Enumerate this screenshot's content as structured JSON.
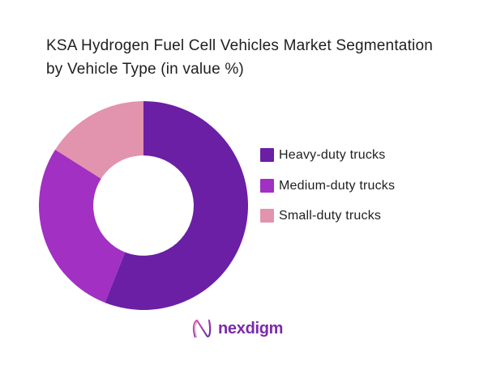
{
  "page": {
    "background": "#ffffff"
  },
  "header": {
    "title": "KSA Hydrogen Fuel Cell Vehicles Market Segmentation\nby Vehicle Type (in value %)"
  },
  "chart_data": {
    "type": "pie",
    "variant": "donut",
    "title": "KSA Hydrogen Fuel Cell Vehicles Market Segmentation by Vehicle Type (in value %)",
    "value_unit": "value %",
    "categories": [
      "Heavy-duty trucks",
      "Medium-duty trucks",
      "Small-duty trucks"
    ],
    "values": [
      56,
      28,
      16
    ],
    "colors": [
      "#6b1fa4",
      "#a230c2",
      "#e293ae"
    ],
    "start_angle_deg": 0,
    "direction": "clockwise",
    "inner_radius_ratio": 0.48,
    "legend_position": "right",
    "data_labels_visible": false
  },
  "legend": {
    "items": [
      {
        "label": "Heavy-duty trucks",
        "color": "#6b1fa4"
      },
      {
        "label": "Medium-duty trucks",
        "color": "#a230c2"
      },
      {
        "label": "Small-duty trucks",
        "color": "#e293ae"
      }
    ]
  },
  "footer": {
    "brand_name": "nexdigm",
    "brand_color": "#7b2aa8",
    "logo_gradient_start": "#d9559f",
    "logo_gradient_end": "#5f24b0"
  }
}
